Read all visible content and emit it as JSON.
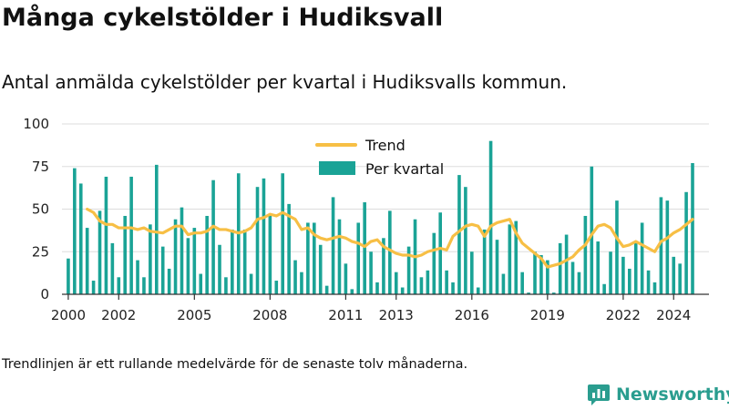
{
  "title": "Många cykelstölder i Hudiksvall",
  "subtitle": "Antal anmälda cykelstölder per kvartal i Hudiksvalls kommun.",
  "footnote": "Trendlinjen är ett rullande medelvärde för de senaste tolv månaderna.",
  "brand": {
    "name": "Newsworthy",
    "icon": "newsworthy-logo-icon"
  },
  "colors": {
    "bar": "#1aa396",
    "trend": "#f7bf45",
    "axis": "#333333",
    "grid": "#dddddd",
    "brand": "#2a9d8f"
  },
  "chart_data": {
    "type": "bar",
    "title": "",
    "xlabel": "",
    "ylabel": "",
    "ylim": [
      0,
      100
    ],
    "y_ticks": [
      0,
      25,
      50,
      75,
      100
    ],
    "x_tick_labels": [
      "2000",
      "2002",
      "2005",
      "2008",
      "2011",
      "2013",
      "2016",
      "2019",
      "2022",
      "2024"
    ],
    "x_tick_positions": [
      2000.0,
      2002.0,
      2005.0,
      2008.0,
      2011.0,
      2013.0,
      2016.0,
      2019.0,
      2022.0,
      2024.0
    ],
    "x_range": [
      1999.75,
      2025.4
    ],
    "grid": true,
    "legend_position": "top-center",
    "series": [
      {
        "name": "Per kvartal",
        "kind": "bar",
        "start_period": "2000 Q1",
        "values": [
          21,
          74,
          65,
          39,
          8,
          49,
          69,
          30,
          10,
          46,
          69,
          20,
          10,
          41,
          76,
          28,
          15,
          44,
          51,
          33,
          39,
          12,
          46,
          67,
          29,
          10,
          38,
          71,
          38,
          12,
          63,
          68,
          46,
          8,
          71,
          53,
          20,
          13,
          42,
          42,
          29,
          5,
          57,
          44,
          18,
          3,
          42,
          54,
          25,
          7,
          33,
          49,
          13,
          4,
          28,
          44,
          10,
          14,
          36,
          48,
          14,
          7,
          70,
          63,
          25,
          4,
          38,
          90,
          32,
          12,
          41,
          43,
          13,
          1,
          25,
          23,
          20,
          1,
          30,
          35,
          19,
          13,
          46,
          75,
          31,
          6,
          25,
          55,
          22,
          15,
          30,
          42,
          14,
          7,
          57,
          55,
          22,
          18,
          60,
          77
        ]
      },
      {
        "name": "Trend",
        "kind": "line",
        "points": [
          [
            2000.75,
            50
          ],
          [
            2001.0,
            48
          ],
          [
            2001.25,
            43
          ],
          [
            2001.5,
            41
          ],
          [
            2001.75,
            41
          ],
          [
            2002.0,
            39
          ],
          [
            2002.5,
            39
          ],
          [
            2002.75,
            38
          ],
          [
            2003.0,
            39
          ],
          [
            2003.25,
            37
          ],
          [
            2003.75,
            36
          ],
          [
            2004.0,
            38
          ],
          [
            2004.25,
            40
          ],
          [
            2004.5,
            40
          ],
          [
            2004.75,
            35
          ],
          [
            2005.0,
            36
          ],
          [
            2005.25,
            36
          ],
          [
            2005.5,
            37
          ],
          [
            2005.75,
            40
          ],
          [
            2006.0,
            38
          ],
          [
            2006.25,
            38
          ],
          [
            2006.5,
            37
          ],
          [
            2006.75,
            36
          ],
          [
            2007.0,
            37
          ],
          [
            2007.25,
            39
          ],
          [
            2007.5,
            44
          ],
          [
            2007.75,
            45
          ],
          [
            2008.0,
            47
          ],
          [
            2008.25,
            46
          ],
          [
            2008.5,
            48
          ],
          [
            2008.75,
            46
          ],
          [
            2009.0,
            44
          ],
          [
            2009.25,
            38
          ],
          [
            2009.5,
            39
          ],
          [
            2009.75,
            35
          ],
          [
            2010.0,
            33
          ],
          [
            2010.25,
            32
          ],
          [
            2010.5,
            33
          ],
          [
            2010.75,
            34
          ],
          [
            2011.0,
            33
          ],
          [
            2011.25,
            31
          ],
          [
            2011.5,
            30
          ],
          [
            2011.75,
            28
          ],
          [
            2012.0,
            31
          ],
          [
            2012.25,
            32
          ],
          [
            2012.5,
            28
          ],
          [
            2012.75,
            26
          ],
          [
            2013.0,
            24
          ],
          [
            2013.25,
            23
          ],
          [
            2013.5,
            23
          ],
          [
            2013.75,
            22
          ],
          [
            2014.0,
            23
          ],
          [
            2014.25,
            25
          ],
          [
            2014.5,
            26
          ],
          [
            2014.75,
            27
          ],
          [
            2015.0,
            26
          ],
          [
            2015.25,
            34
          ],
          [
            2015.5,
            37
          ],
          [
            2015.75,
            40
          ],
          [
            2016.0,
            41
          ],
          [
            2016.25,
            40
          ],
          [
            2016.5,
            34
          ],
          [
            2016.75,
            40
          ],
          [
            2017.0,
            42
          ],
          [
            2017.25,
            43
          ],
          [
            2017.5,
            44
          ],
          [
            2017.75,
            36
          ],
          [
            2018.0,
            30
          ],
          [
            2018.25,
            27
          ],
          [
            2018.5,
            24
          ],
          [
            2018.75,
            21
          ],
          [
            2019.0,
            16
          ],
          [
            2019.25,
            17
          ],
          [
            2019.5,
            18
          ],
          [
            2019.75,
            20
          ],
          [
            2020.0,
            22
          ],
          [
            2020.25,
            26
          ],
          [
            2020.5,
            29
          ],
          [
            2020.75,
            35
          ],
          [
            2021.0,
            40
          ],
          [
            2021.25,
            41
          ],
          [
            2021.5,
            39
          ],
          [
            2021.75,
            33
          ],
          [
            2022.0,
            28
          ],
          [
            2022.25,
            29
          ],
          [
            2022.5,
            31
          ],
          [
            2022.75,
            29
          ],
          [
            2023.0,
            27
          ],
          [
            2023.25,
            25
          ],
          [
            2023.5,
            31
          ],
          [
            2023.75,
            33
          ],
          [
            2024.0,
            36
          ],
          [
            2024.25,
            38
          ],
          [
            2024.5,
            41
          ],
          [
            2024.75,
            44
          ]
        ]
      }
    ]
  }
}
